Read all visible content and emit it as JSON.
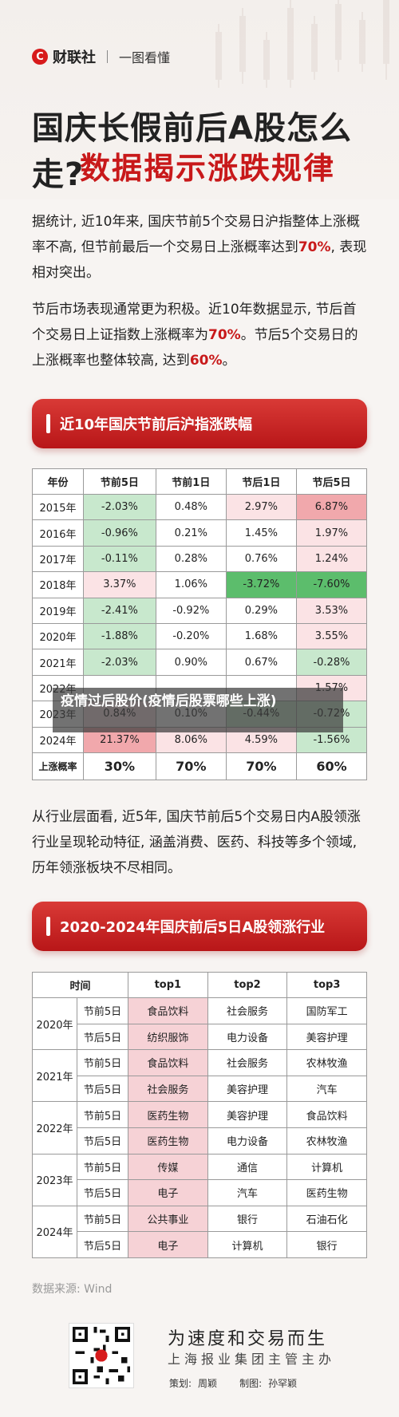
{
  "header": {
    "brand": "财联社",
    "subtitle": "一图看懂",
    "title_line1": "国庆长假前后A股怎么走?",
    "title_line2": "数据揭示涨跌规律"
  },
  "para1": {
    "text_a": "据统计, 近10年来, 国庆节前5个交易日沪指整体上涨概率不高, 但节前最后一个交易日上涨概率达到",
    "highlight": "70%",
    "text_b": ", 表现相对突出。"
  },
  "para2": {
    "text_a": "节后市场表现通常更为积极。近10年数据显示, 节后首个交易日上证指数上涨概率为",
    "highlight_a": "70%",
    "text_b": "。节后5个交易日的上涨概率也整体较高, 达到",
    "highlight_b": "60%",
    "text_c": "。"
  },
  "banner1": "近10年国庆节前后沪指涨跌幅",
  "table1": {
    "headers": [
      "年份",
      "节前5日",
      "节前1日",
      "节后1日",
      "节后5日"
    ],
    "rows": [
      [
        "2015年",
        "-2.03%",
        "0.48%",
        "2.97%",
        "6.87%"
      ],
      [
        "2016年",
        "-0.96%",
        "0.21%",
        "1.45%",
        "1.97%"
      ],
      [
        "2017年",
        "-0.11%",
        "0.28%",
        "0.76%",
        "1.24%"
      ],
      [
        "2018年",
        "3.37%",
        "1.06%",
        "-3.72%",
        "-7.60%"
      ],
      [
        "2019年",
        "-2.41%",
        "-0.92%",
        "0.29%",
        "3.53%"
      ],
      [
        "2020年",
        "-1.88%",
        "-0.20%",
        "1.68%",
        "3.55%"
      ],
      [
        "2021年",
        "-2.03%",
        "0.90%",
        "0.67%",
        "-0.28%"
      ],
      [
        "2022年",
        "",
        "",
        "",
        "1.57%"
      ],
      [
        "2023年",
        "0.84%",
        "0.10%",
        "-0.44%",
        "-0.72%"
      ],
      [
        "2024年",
        "21.37%",
        "8.06%",
        "4.59%",
        "-1.56%"
      ]
    ],
    "summary": [
      "上涨概率",
      "30%",
      "70%",
      "70%",
      "60%"
    ]
  },
  "watermark": "疫情过后股价(疫情后股票哪些上涨)",
  "para3": "从行业层面看, 近5年, 国庆节前后5个交易日内A股领涨行业呈现轮动特征, 涵盖消费、医药、科技等多个领域, 历年领涨板块不尽相同。",
  "banner2": "2020-2024年国庆前后5日A股领涨行业",
  "table2": {
    "headers": [
      "时间",
      "top1",
      "top2",
      "top3"
    ],
    "groups": [
      {
        "year": "2020年",
        "rows": [
          [
            "节前5日",
            "食品饮料",
            "社会服务",
            "国防军工"
          ],
          [
            "节后5日",
            "纺织服饰",
            "电力设备",
            "美容护理"
          ]
        ]
      },
      {
        "year": "2021年",
        "rows": [
          [
            "节前5日",
            "食品饮料",
            "社会服务",
            "农林牧渔"
          ],
          [
            "节后5日",
            "社会服务",
            "美容护理",
            "汽车"
          ]
        ]
      },
      {
        "year": "2022年",
        "rows": [
          [
            "节前5日",
            "医药生物",
            "美容护理",
            "食品饮料"
          ],
          [
            "节后5日",
            "医药生物",
            "电力设备",
            "农林牧渔"
          ]
        ]
      },
      {
        "year": "2023年",
        "rows": [
          [
            "节前5日",
            "传媒",
            "通信",
            "计算机"
          ],
          [
            "节后5日",
            "电子",
            "汽车",
            "医药生物"
          ]
        ]
      },
      {
        "year": "2024年",
        "rows": [
          [
            "节前5日",
            "公共事业",
            "银行",
            "石油石化"
          ],
          [
            "节后5日",
            "电子",
            "计算机",
            "银行"
          ]
        ]
      }
    ]
  },
  "footer": {
    "source": "数据来源: Wind",
    "slogan": "为速度和交易而生",
    "slogan2": "上海报业集团主管主办",
    "planner_label": "策划:",
    "planner": "周颖",
    "maker_label": "制图:",
    "maker": "孙罕颖"
  },
  "colors": {
    "red": "#c8191a",
    "up_strong": "#f1a8ac",
    "up_light": "#fbe3e5",
    "down_strong": "#5cbd6c",
    "down_light": "#c8e8cd"
  }
}
